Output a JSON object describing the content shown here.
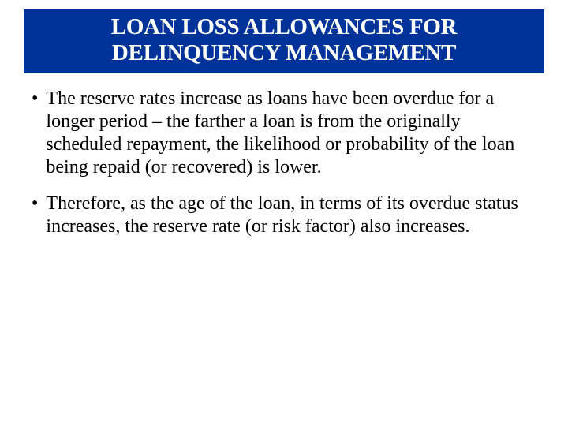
{
  "slide": {
    "title": "LOAN LOSS ALLOWANCES FOR DELINQUENCY MANAGEMENT",
    "title_bg_color": "#003399",
    "title_text_color": "#ffffff",
    "title_fontsize": 29,
    "body_fontsize": 24,
    "body_text_color": "#000000",
    "background_color": "#ffffff",
    "bullets": [
      {
        "text": "The reserve rates increase as loans have been overdue for a longer period – the farther a loan is from the originally scheduled repayment, the likelihood or probability of the loan being repaid (or recovered) is lower."
      },
      {
        "text": "Therefore, as the age of the loan, in terms of its overdue status increases, the reserve rate (or risk factor) also increases."
      }
    ]
  }
}
